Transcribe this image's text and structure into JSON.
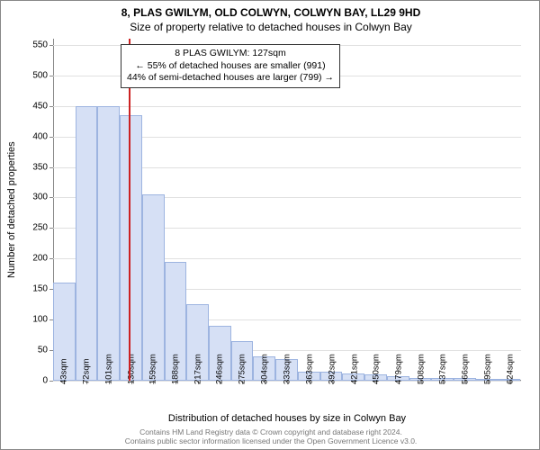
{
  "title_line1": "8, PLAS GWILYM, OLD COLWYN, COLWYN BAY, LL29 9HD",
  "title_line2": "Size of property relative to detached houses in Colwyn Bay",
  "y_axis_label": "Number of detached properties",
  "x_axis_label": "Distribution of detached houses by size in Colwyn Bay",
  "footer_line1": "Contains HM Land Registry data © Crown copyright and database right 2024.",
  "footer_line2": "Contains public sector information licensed under the Open Government Licence v3.0.",
  "annotation": {
    "line1": "8 PLAS GWILYM: 127sqm",
    "line2": "← 55% of detached houses are smaller (991)",
    "line3": "44% of semi-detached houses are larger (799) →"
  },
  "chart": {
    "type": "histogram",
    "background_color": "#ffffff",
    "grid_color": "#e0e0e0",
    "bar_fill": "#d6e0f5",
    "bar_border": "#9db4e0",
    "marker_color": "#cc2222",
    "marker_x_value": 127,
    "x_min": 28.5,
    "x_max": 638.5,
    "y_min": 0,
    "y_max": 560,
    "y_ticks": [
      0,
      50,
      100,
      150,
      200,
      250,
      300,
      350,
      400,
      450,
      500,
      550
    ],
    "x_ticks": [
      43,
      72,
      101,
      130,
      159,
      188,
      217,
      246,
      275,
      304,
      333,
      363,
      392,
      421,
      450,
      479,
      508,
      537,
      566,
      595,
      624
    ],
    "x_tick_suffix": "sqm",
    "bin_width": 29,
    "bins": [
      {
        "start": 28.5,
        "value": 160
      },
      {
        "start": 57.5,
        "value": 450
      },
      {
        "start": 86.5,
        "value": 450
      },
      {
        "start": 115.5,
        "value": 435
      },
      {
        "start": 144.5,
        "value": 305
      },
      {
        "start": 173.5,
        "value": 195
      },
      {
        "start": 202.5,
        "value": 125
      },
      {
        "start": 231.5,
        "value": 90
      },
      {
        "start": 260.5,
        "value": 65
      },
      {
        "start": 289.5,
        "value": 40
      },
      {
        "start": 318.5,
        "value": 35
      },
      {
        "start": 347.5,
        "value": 15
      },
      {
        "start": 376.5,
        "value": 15
      },
      {
        "start": 405.5,
        "value": 12
      },
      {
        "start": 434.5,
        "value": 10
      },
      {
        "start": 463.5,
        "value": 8
      },
      {
        "start": 492.5,
        "value": 5
      },
      {
        "start": 521.5,
        "value": 5
      },
      {
        "start": 550.5,
        "value": 4
      },
      {
        "start": 579.5,
        "value": 3
      },
      {
        "start": 608.5,
        "value": 3
      }
    ],
    "title_fontsize": 12,
    "label_fontsize": 11,
    "tick_fontsize": 10,
    "annotation_fontsize": 10.5
  }
}
